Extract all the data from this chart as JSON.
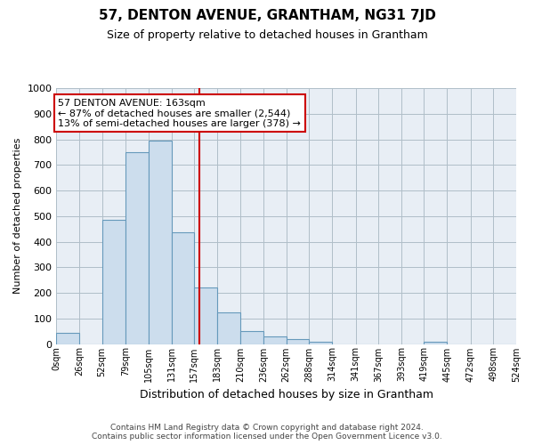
{
  "title": "57, DENTON AVENUE, GRANTHAM, NG31 7JD",
  "subtitle": "Size of property relative to detached houses in Grantham",
  "xlabel": "Distribution of detached houses by size in Grantham",
  "ylabel": "Number of detached properties",
  "bar_edges": [
    0,
    26,
    52,
    79,
    105,
    131,
    157,
    183,
    210,
    236,
    262,
    288,
    314,
    341,
    367,
    393,
    419,
    445,
    472,
    498,
    524
  ],
  "bar_heights": [
    45,
    0,
    485,
    750,
    795,
    435,
    220,
    125,
    50,
    30,
    18,
    10,
    0,
    0,
    0,
    0,
    8,
    0,
    0,
    0
  ],
  "tick_labels": [
    "0sqm",
    "26sqm",
    "52sqm",
    "79sqm",
    "105sqm",
    "131sqm",
    "157sqm",
    "183sqm",
    "210sqm",
    "236sqm",
    "262sqm",
    "288sqm",
    "314sqm",
    "341sqm",
    "367sqm",
    "393sqm",
    "419sqm",
    "445sqm",
    "472sqm",
    "498sqm",
    "524sqm"
  ],
  "bar_color": "#ccdded",
  "bar_edge_color": "#6699bb",
  "plot_bg_color": "#e8eef5",
  "vline_x": 163,
  "vline_color": "#cc0000",
  "ylim": [
    0,
    1000
  ],
  "annotation_title": "57 DENTON AVENUE: 163sqm",
  "annotation_line1": "← 87% of detached houses are smaller (2,544)",
  "annotation_line2": "13% of semi-detached houses are larger (378) →",
  "annotation_box_color": "#ffffff",
  "annotation_box_edge": "#cc0000",
  "footer_line1": "Contains HM Land Registry data © Crown copyright and database right 2024.",
  "footer_line2": "Contains public sector information licensed under the Open Government Licence v3.0.",
  "background_color": "#ffffff",
  "grid_color": "#b0bec8",
  "grid_bg": "#dce8f0"
}
